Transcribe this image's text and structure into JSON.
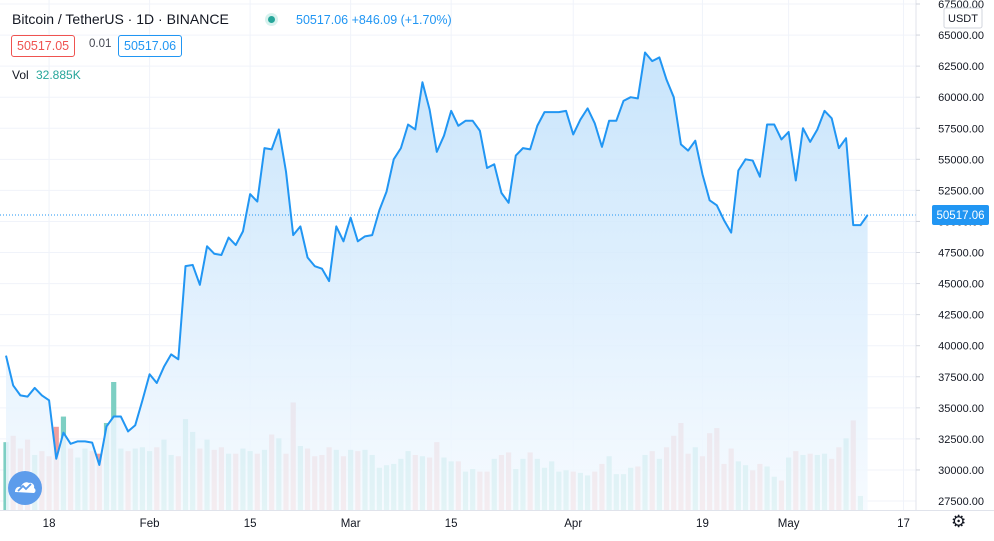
{
  "header": {
    "symbol_title": "Bitcoin / TetherUS · 1D · BINANCE",
    "price_change": "50517.06 +846.09 (+1.70%)",
    "bid": "50517.05",
    "spread": "0.01",
    "ask": "50517.06",
    "vol_label": "Vol",
    "vol_value": "32.885K"
  },
  "price_axis": {
    "currency": "USDT",
    "last_price_label": "50517.06"
  },
  "icons": {
    "logo": "tradingview-logo-icon",
    "settings": "gear-icon"
  },
  "colors": {
    "line": "#2196f3",
    "area_top": "#bfe0fb",
    "area_bottom": "#f5faff",
    "volume_up": "#7dcfc3",
    "volume_down": "#f0a09e",
    "volume_highlight_up": "#4db6ac",
    "price_label_bg": "#2196f3",
    "last_price_line": "#2196f3"
  },
  "chart_data": {
    "type": "area",
    "title": "Bitcoin / TetherUS · 1D · BINANCE",
    "ylim": [
      27500,
      67500
    ],
    "y_ticks": [
      27500,
      30000,
      32500,
      35000,
      37500,
      40000,
      42500,
      45000,
      47500,
      50000,
      52500,
      55000,
      57500,
      60000,
      62500,
      65000,
      67500
    ],
    "x_tick_labels": [
      "18",
      "Feb",
      "15",
      "Mar",
      "15",
      "Apr",
      "19",
      "May",
      "17"
    ],
    "x_tick_dates": [
      "2021-01-18",
      "2021-02-01",
      "2021-02-15",
      "2021-03-01",
      "2021-03-15",
      "2021-04-01",
      "2021-04-19",
      "2021-05-01",
      "2021-05-17"
    ],
    "last_price": 50517.06,
    "grid": true,
    "series": [
      {
        "start_date": "2021-01-12",
        "values": [
          39200,
          36800,
          36000,
          35900,
          36600,
          36000,
          35600,
          30900,
          33000,
          32100,
          32300,
          32300,
          32200,
          30400,
          33500,
          34300,
          34300,
          33100,
          33600,
          35600,
          37700,
          37000,
          38300,
          39300,
          38900,
          46400,
          46500,
          44900,
          48000,
          47400,
          47300,
          48700,
          48100,
          49200,
          52200,
          51600,
          55900,
          55800,
          57400,
          54000,
          48900,
          49600,
          47100,
          46400,
          46200,
          45200,
          49600,
          48400,
          50300,
          48400,
          48800,
          48900,
          50900,
          52400,
          55000,
          55900,
          57800,
          57400,
          61200,
          59000,
          55600,
          56900,
          58900,
          57700,
          58100,
          58100,
          57300,
          54300,
          54600,
          52300,
          51500,
          55300,
          55900,
          55800,
          57700,
          58800,
          58800,
          58800,
          58900,
          57000,
          58200,
          59100,
          57900,
          56000,
          58100,
          58100,
          59700,
          60000,
          59900,
          63600,
          62900,
          63200,
          61400,
          60000,
          56200,
          55700,
          56500,
          53800,
          51700,
          51300,
          50100,
          49100,
          54100,
          55000,
          54900,
          53600,
          57800,
          57800,
          56600,
          57200,
          53300,
          57500,
          56400,
          57400,
          58900,
          58300,
          55900,
          56700,
          49700,
          49700,
          50517.06
        ]
      }
    ],
    "volume": {
      "label": "Vol",
      "start_date": "2021-01-12",
      "values": [
        0.53,
        0.58,
        0.48,
        0.55,
        0.43,
        0.46,
        0.42,
        0.65,
        0.73,
        0.48,
        0.41,
        0.48,
        0.46,
        0.44,
        0.68,
        1.0,
        0.48,
        0.46,
        0.48,
        0.49,
        0.46,
        0.49,
        0.55,
        0.43,
        0.42,
        0.71,
        0.61,
        0.48,
        0.55,
        0.47,
        0.49,
        0.44,
        0.44,
        0.48,
        0.46,
        0.44,
        0.47,
        0.59,
        0.56,
        0.44,
        0.84,
        0.5,
        0.48,
        0.42,
        0.43,
        0.49,
        0.47,
        0.42,
        0.47,
        0.46,
        0.47,
        0.43,
        0.33,
        0.35,
        0.36,
        0.4,
        0.46,
        0.43,
        0.42,
        0.41,
        0.53,
        0.41,
        0.38,
        0.38,
        0.3,
        0.32,
        0.3,
        0.3,
        0.4,
        0.43,
        0.45,
        0.32,
        0.4,
        0.45,
        0.4,
        0.33,
        0.38,
        0.3,
        0.31,
        0.3,
        0.29,
        0.27,
        0.3,
        0.36,
        0.42,
        0.28,
        0.28,
        0.33,
        0.34,
        0.43,
        0.46,
        0.4,
        0.49,
        0.58,
        0.68,
        0.44,
        0.49,
        0.42,
        0.6,
        0.64,
        0.36,
        0.48,
        0.38,
        0.35,
        0.31,
        0.36,
        0.34,
        0.26,
        0.23,
        0.41,
        0.46,
        0.43,
        0.44,
        0.43,
        0.44,
        0.4,
        0.49,
        0.56,
        0.7,
        0.11
      ]
    }
  }
}
